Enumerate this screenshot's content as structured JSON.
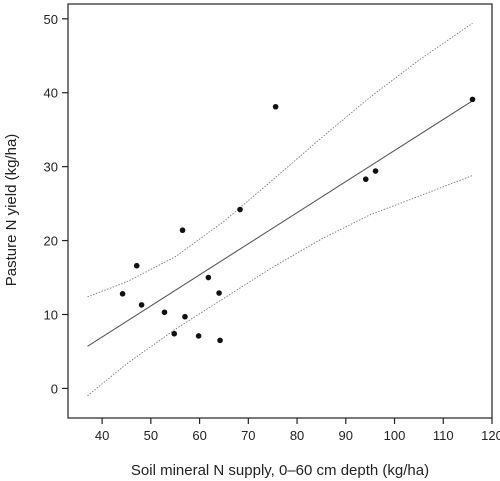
{
  "chart_data": {
    "type": "scatter",
    "title": "",
    "xlabel": "Soil mineral N supply, 0–60 cm depth (kg/ha)",
    "ylabel": "Pasture N yield (kg/ha)",
    "xlim": [
      33,
      120
    ],
    "ylim": [
      -4,
      52
    ],
    "x_ticks": [
      40,
      50,
      60,
      70,
      80,
      90,
      100,
      110,
      120
    ],
    "y_ticks": [
      0,
      10,
      20,
      30,
      40,
      50
    ],
    "grid": false,
    "legend": "none",
    "series": [
      {
        "points": [
          {
            "x": 44.2,
            "y": 12.8
          },
          {
            "x": 47.1,
            "y": 16.6
          },
          {
            "x": 48.1,
            "y": 11.3
          },
          {
            "x": 52.8,
            "y": 10.3
          },
          {
            "x": 54.8,
            "y": 7.4
          },
          {
            "x": 56.5,
            "y": 21.4
          },
          {
            "x": 57.0,
            "y": 9.7
          },
          {
            "x": 59.8,
            "y": 7.1
          },
          {
            "x": 61.8,
            "y": 15.0
          },
          {
            "x": 64.0,
            "y": 12.9
          },
          {
            "x": 64.2,
            "y": 6.5
          },
          {
            "x": 68.3,
            "y": 24.2
          },
          {
            "x": 75.6,
            "y": 38.1
          },
          {
            "x": 94.1,
            "y": 28.3
          },
          {
            "x": 96.1,
            "y": 29.4
          },
          {
            "x": 116.0,
            "y": 39.1
          }
        ]
      }
    ],
    "fit_line": {
      "x": [
        37,
        116
      ],
      "y": [
        5.7,
        38.9
      ]
    },
    "confidence_upper": {
      "x": [
        37,
        45,
        55,
        65,
        75,
        85,
        95,
        105,
        116
      ],
      "y": [
        12.4,
        14.4,
        17.8,
        22.6,
        28.2,
        33.9,
        39.4,
        44.4,
        49.4
      ]
    },
    "confidence_lower": {
      "x": [
        37,
        45,
        55,
        65,
        75,
        85,
        95,
        105,
        116
      ],
      "y": [
        -1.0,
        3.3,
        8.0,
        12.2,
        16.4,
        20.2,
        23.5,
        26.0,
        28.8
      ]
    },
    "colors": {
      "points": "#111111",
      "fit": "#555555",
      "band": "#777777",
      "axis": "#222222"
    }
  }
}
